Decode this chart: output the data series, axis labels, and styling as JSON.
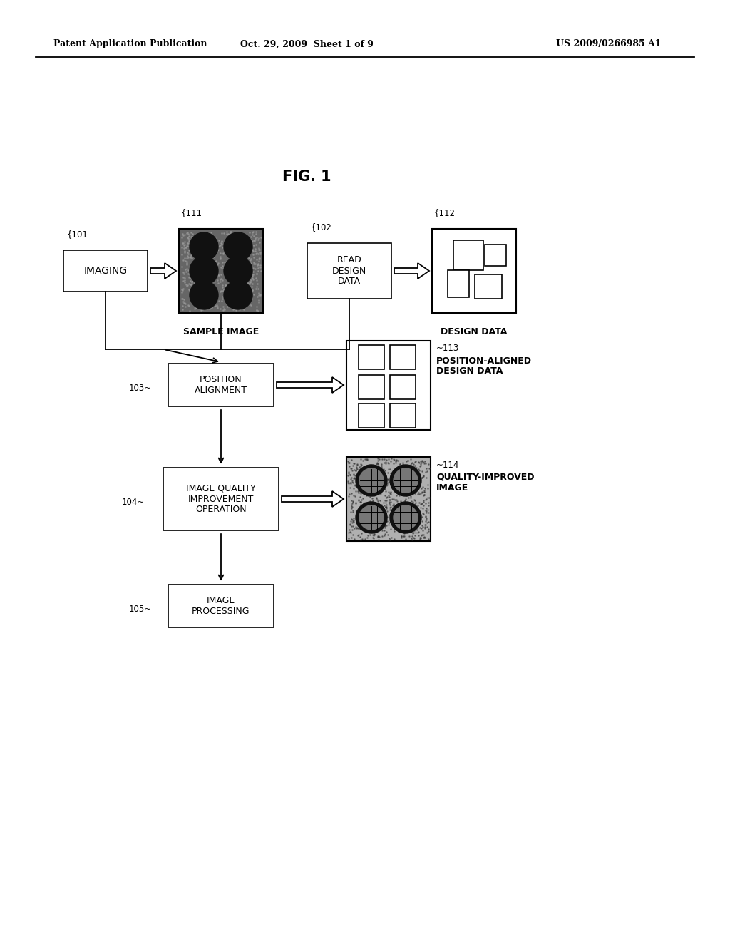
{
  "bg_color": "#ffffff",
  "header_left": "Patent Application Publication",
  "header_mid": "Oct. 29, 2009  Sheet 1 of 9",
  "header_right": "US 2009/0266985 A1",
  "fig_title": "FIG. 1",
  "text_sample_image": "SAMPLE IMAGE",
  "text_design_data": "DESIGN DATA",
  "text_pos_aligned": "POSITION-ALIGNED\nDESIGN DATA",
  "text_quality_improved": "QUALITY-IMPROVED\nIMAGE",
  "node_imaging": "IMAGING",
  "node_rdd": "READ\nDESIGN\nDATA",
  "node_pa": "POSITION\nALIGNMENT",
  "node_iq": "IMAGE QUALITY\nIMPROVEMENT\nOPERATION",
  "node_ip": "IMAGE\nPROCESSING"
}
